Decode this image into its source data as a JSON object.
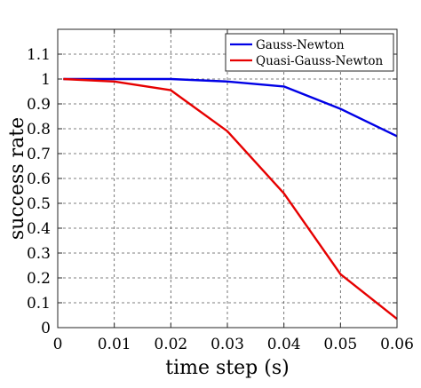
{
  "chart_data": {
    "type": "line",
    "xlabel": "time step (s)",
    "ylabel": "success rate",
    "xlim": [
      0,
      0.06
    ],
    "ylim": [
      0,
      1.2
    ],
    "x_ticks": [
      0,
      0.01,
      0.02,
      0.03,
      0.04,
      0.05,
      0.06
    ],
    "x_tick_labels": [
      "0",
      "0.01",
      "0.02",
      "0.03",
      "0.04",
      "0.05",
      "0.06"
    ],
    "y_ticks": [
      0,
      0.1,
      0.2,
      0.3,
      0.4,
      0.5,
      0.6,
      0.7,
      0.8,
      0.9,
      1,
      1.1
    ],
    "y_tick_labels": [
      "0",
      "0.1",
      "0.2",
      "0.3",
      "0.4",
      "0.5",
      "0.6",
      "0.7",
      "0.8",
      "0.9",
      "1",
      "1.1"
    ],
    "grid": true,
    "legend_position": "top-right",
    "series": [
      {
        "name": "Gauss-Newton",
        "color": "#0000e6",
        "x": [
          0.001,
          0.01,
          0.02,
          0.03,
          0.04,
          0.05,
          0.06
        ],
        "y": [
          1.0,
          1.0,
          1.0,
          0.99,
          0.97,
          0.88,
          0.77
        ]
      },
      {
        "name": "Quasi-Gauss-Newton",
        "color": "#e60000",
        "x": [
          0.001,
          0.01,
          0.02,
          0.03,
          0.04,
          0.05,
          0.06
        ],
        "y": [
          1.0,
          0.99,
          0.955,
          0.79,
          0.54,
          0.215,
          0.035
        ]
      }
    ]
  }
}
